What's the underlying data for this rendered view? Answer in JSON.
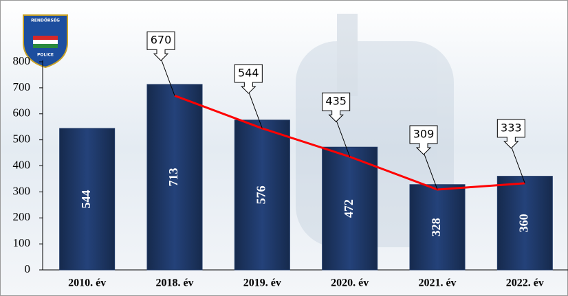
{
  "logo": {
    "top": "RENDŐRSÉG",
    "bottom": "POLICE"
  },
  "chart_data": {
    "type": "bar",
    "categories": [
      "2010. év",
      "2018. év",
      "2019. év",
      "2020. év",
      "2021. év",
      "2022. év"
    ],
    "series": [
      {
        "type": "bar",
        "color": "#1f3864",
        "values": [
          544,
          713,
          576,
          472,
          328,
          360
        ]
      },
      {
        "type": "line",
        "color": "#ff0000",
        "values": [
          null,
          670,
          544,
          435,
          309,
          333
        ]
      }
    ],
    "ylim": [
      0,
      800
    ],
    "yticks": [
      0,
      100,
      200,
      300,
      400,
      500,
      600,
      700,
      800
    ]
  }
}
